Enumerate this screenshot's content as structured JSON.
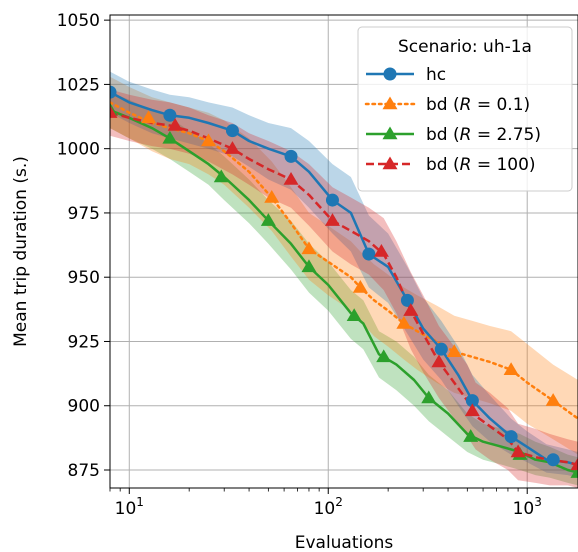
{
  "chart_data": {
    "type": "line",
    "xscale": "log",
    "xlabel": "Evaluations",
    "ylabel": "Mean trip duration (s.)",
    "xlim": [
      8,
      1800
    ],
    "ylim": [
      868,
      1052
    ],
    "grid": true,
    "x_ticks": [
      10,
      100,
      1000
    ],
    "x_tick_labels": [
      {
        "base": "10",
        "exp": "1"
      },
      {
        "base": "10",
        "exp": "2"
      },
      {
        "base": "10",
        "exp": "3"
      }
    ],
    "y_ticks": [
      875,
      900,
      925,
      950,
      975,
      1000,
      1025,
      1050
    ],
    "y_tick_labels": [
      "875",
      "900",
      "925",
      "950",
      "975",
      "1000",
      "1025",
      "1050"
    ],
    "legend": {
      "title": "Scenario: uh-1a",
      "placement": "top-right",
      "entries": [
        {
          "pre": "hc",
          "var": "",
          "post": ""
        },
        {
          "pre": "bd (",
          "var": "R",
          "post": " = 0.1)"
        },
        {
          "pre": "bd (",
          "var": "R",
          "post": " = 2.75)"
        },
        {
          "pre": "bd (",
          "var": "R",
          "post": " = 100)"
        }
      ]
    },
    "series": [
      {
        "name": "hc",
        "color": "#1f77b4",
        "linestyle": "solid",
        "marker": "circle",
        "x": [
          8,
          10,
          13,
          16,
          20,
          25,
          33,
          40,
          50,
          65,
          80,
          105,
          130,
          160,
          200,
          250,
          300,
          370,
          450,
          530,
          650,
          830,
          1000,
          1250,
          1600,
          1800
        ],
        "y": [
          1022,
          1018,
          1015,
          1013,
          1012,
          1010,
          1007,
          1003,
          1000,
          997,
          991,
          980,
          975,
          959,
          954,
          941,
          930,
          922,
          912,
          902,
          895,
          888,
          884,
          879,
          878,
          877
        ],
        "band_low": [
          1014,
          1010,
          1006,
          1004,
          1002,
          1000,
          997,
          993,
          988,
          984,
          977,
          967,
          960,
          946,
          940,
          928,
          918,
          910,
          900,
          892,
          886,
          881,
          878,
          874,
          873,
          872
        ],
        "band_high": [
          1030,
          1026,
          1023,
          1021,
          1020,
          1018,
          1016,
          1013,
          1010,
          1008,
          1003,
          994,
          989,
          974,
          967,
          954,
          942,
          933,
          923,
          912,
          904,
          895,
          890,
          885,
          883,
          882
        ],
        "marker_x": [
          8,
          16,
          33,
          65,
          105,
          160,
          250,
          370,
          530,
          830,
          1350
        ],
        "marker_y": [
          1022,
          1013,
          1007,
          997,
          980,
          959,
          941,
          922,
          902,
          888,
          879
        ]
      },
      {
        "name": "bd (R = 0.1)",
        "color": "#ff7f0e",
        "linestyle": "dotted",
        "marker": "triangle",
        "x": [
          8,
          10,
          13,
          16,
          20,
          25,
          30,
          40,
          52,
          65,
          80,
          100,
          130,
          145,
          170,
          200,
          240,
          280,
          350,
          430,
          530,
          650,
          830,
          1000,
          1350,
          1800
        ],
        "y": [
          1018,
          1014,
          1010,
          1008,
          1006,
          1003,
          999,
          991,
          981,
          971,
          961,
          956,
          950,
          946,
          941,
          937,
          932,
          929,
          925,
          921,
          919,
          917,
          914,
          909,
          902,
          895
        ],
        "band_low": [
          1008,
          1004,
          999,
          996,
          994,
          990,
          986,
          977,
          968,
          958,
          949,
          943,
          937,
          933,
          927,
          923,
          918,
          914,
          909,
          905,
          903,
          901,
          898,
          893,
          887,
          881
        ],
        "band_high": [
          1028,
          1024,
          1020,
          1018,
          1016,
          1014,
          1011,
          1004,
          995,
          985,
          975,
          970,
          964,
          960,
          955,
          951,
          946,
          943,
          939,
          935,
          933,
          931,
          929,
          924,
          916,
          910
        ],
        "marker_x": [
          12.5,
          25,
          52,
          80,
          145,
          240,
          430,
          830,
          1350
        ],
        "marker_y": [
          1012,
          1003,
          981,
          961,
          946,
          932,
          921,
          914,
          902
        ]
      },
      {
        "name": "bd (R = 2.75)",
        "color": "#2ca02c",
        "linestyle": "solid",
        "marker": "triangle",
        "x": [
          8,
          10,
          13,
          16,
          20,
          25,
          30,
          40,
          50,
          65,
          80,
          100,
          130,
          150,
          180,
          220,
          270,
          320,
          400,
          500,
          600,
          750,
          920,
          1100,
          1300,
          1600,
          1800
        ],
        "y": [
          1015,
          1012,
          1008,
          1004,
          999,
          994,
          989,
          980,
          972,
          963,
          954,
          947,
          936,
          932,
          920,
          916,
          910,
          903,
          897,
          889,
          886,
          884,
          882,
          879,
          878,
          875,
          874
        ],
        "band_low": [
          1008,
          1004,
          1000,
          996,
          991,
          986,
          980,
          971,
          963,
          953,
          944,
          937,
          926,
          922,
          911,
          906,
          900,
          894,
          888,
          882,
          879,
          877,
          875,
          873,
          872,
          870,
          869
        ],
        "band_high": [
          1022,
          1019,
          1015,
          1012,
          1007,
          1002,
          997,
          988,
          980,
          972,
          963,
          956,
          945,
          941,
          929,
          925,
          919,
          912,
          906,
          897,
          893,
          891,
          889,
          886,
          884,
          881,
          880
        ],
        "marker_x": [
          8,
          16,
          29,
          50,
          80,
          135,
          190,
          320,
          520,
          920,
          1800
        ],
        "marker_y": [
          1015,
          1004,
          989,
          972,
          954,
          935,
          919,
          903,
          888,
          881,
          874
        ]
      },
      {
        "name": "bd (R = 100)",
        "color": "#d62728",
        "linestyle": "dashed",
        "marker": "triangle",
        "x": [
          8,
          10,
          13,
          16,
          20,
          25,
          33,
          40,
          50,
          65,
          80,
          105,
          130,
          160,
          190,
          220,
          260,
          300,
          360,
          420,
          500,
          550,
          650,
          800,
          900,
          1100,
          1300,
          1600,
          1800
        ],
        "y": [
          1014,
          1012,
          1010,
          1009,
          1007,
          1004,
          1000,
          996,
          992,
          988,
          982,
          972,
          968,
          964,
          959,
          950,
          937,
          928,
          917,
          910,
          902,
          896,
          892,
          887,
          882,
          880,
          879,
          878,
          877
        ],
        "band_low": [
          1005,
          1003,
          1001,
          1000,
          998,
          995,
          990,
          986,
          981,
          977,
          970,
          960,
          955,
          951,
          945,
          936,
          922,
          913,
          903,
          896,
          888,
          883,
          879,
          875,
          871,
          870,
          869,
          869,
          868
        ],
        "band_high": [
          1023,
          1021,
          1019,
          1018,
          1016,
          1013,
          1010,
          1006,
          1003,
          999,
          994,
          985,
          981,
          977,
          973,
          964,
          952,
          943,
          931,
          924,
          916,
          909,
          905,
          899,
          893,
          891,
          889,
          887,
          886
        ],
        "marker_x": [
          8,
          17,
          33,
          65,
          105,
          185,
          260,
          360,
          530,
          900,
          1800
        ],
        "marker_y": [
          1014,
          1009,
          1000,
          988,
          972,
          960,
          937,
          917,
          898,
          882,
          877
        ]
      }
    ]
  }
}
